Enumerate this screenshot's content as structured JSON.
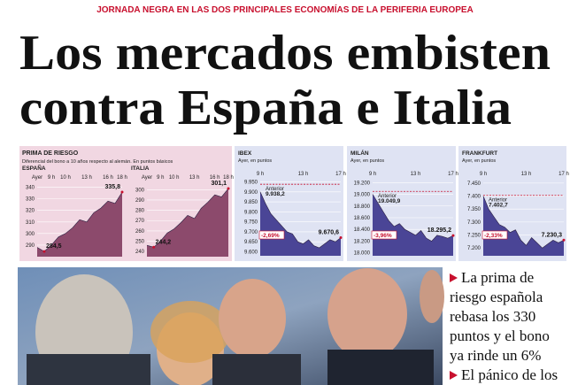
{
  "header": {
    "kicker": "JORNADA NEGRA EN LAS DOS PRINCIPALES ECONOMÍAS DE LA PERIFERIA EUROPEA",
    "headline": [
      "Los mercados embisten",
      "contra España e Italia"
    ]
  },
  "risk_panel": {
    "title": "PRIMA DE RIESGO",
    "subtitle": "Diferencial del bono a 10 años respecto al alemán. En puntos básicos"
  },
  "chart_data": [
    {
      "type": "area",
      "title": "ESPAÑA",
      "color": "#8c4a6c",
      "categories": [
        "Ayer",
        null,
        "9 h",
        null,
        "10 h",
        null,
        null,
        "13 h",
        null,
        null,
        "16 h",
        null,
        "18 h"
      ],
      "values": [
        288,
        284.5,
        290,
        297,
        300,
        305,
        312,
        310,
        318,
        322,
        328,
        326,
        335.8
      ],
      "value_labels": [
        null,
        "284,5",
        null,
        null,
        null,
        null,
        null,
        null,
        null,
        null,
        null,
        null,
        "335,8"
      ],
      "ylim": [
        280,
        345
      ],
      "yticks": [
        290,
        300,
        310,
        320,
        330,
        340
      ]
    },
    {
      "type": "area",
      "title": "ITALIA",
      "color": "#8c4a6c",
      "categories": [
        "Ayer",
        null,
        "9 h",
        null,
        "10 h",
        null,
        null,
        "13 h",
        null,
        null,
        "16 h",
        null,
        "18 h"
      ],
      "values": [
        246,
        244.2,
        250,
        258,
        262,
        268,
        275,
        272,
        282,
        288,
        295,
        293,
        301.1
      ],
      "value_labels": [
        null,
        "244,2",
        null,
        null,
        null,
        null,
        null,
        null,
        null,
        null,
        null,
        null,
        "301,1"
      ],
      "ylim": [
        235,
        308
      ],
      "yticks": [
        240,
        250,
        260,
        270,
        280,
        290,
        300
      ]
    },
    {
      "type": "area",
      "title": "IBEX",
      "subtitle": "Ayer, en puntos",
      "color": "#4a4596",
      "categories": [
        "9 h",
        null,
        null,
        null,
        null,
        null,
        null,
        null,
        "13 h",
        null,
        null,
        null,
        null,
        null,
        null,
        "17 h"
      ],
      "values": [
        9900,
        9840,
        9790,
        9760,
        9730,
        9700,
        9690,
        9650,
        9640,
        9660,
        9630,
        9620,
        9640,
        9660,
        9650,
        9670.6
      ],
      "value_labels": [
        null,
        null,
        null,
        null,
        null,
        null,
        null,
        null,
        null,
        null,
        null,
        null,
        null,
        null,
        null,
        "9.670,6"
      ],
      "reference": {
        "label": "Anterior",
        "value": 9938.2,
        "value_label": "9.938,2"
      },
      "change": "-2,69%",
      "ylim": [
        9580,
        9970
      ],
      "yticks": [
        {
          "value": 9600,
          "label": "9.600"
        },
        {
          "value": 9650,
          "label": "9.650"
        },
        {
          "value": 9700,
          "label": "9.700"
        },
        {
          "value": 9750,
          "label": "9.750"
        },
        {
          "value": 9800,
          "label": "9.800"
        },
        {
          "value": 9850,
          "label": "9.850"
        },
        {
          "value": 9900,
          "label": "9.900"
        },
        {
          "value": 9950,
          "label": "9.950"
        }
      ]
    },
    {
      "type": "area",
      "title": "MILÁN",
      "subtitle": "Ayer, en puntos",
      "color": "#4a4596",
      "categories": [
        "9 h",
        null,
        null,
        null,
        null,
        null,
        null,
        null,
        "13 h",
        null,
        null,
        null,
        null,
        null,
        null,
        "17 h"
      ],
      "values": [
        19000,
        18850,
        18700,
        18550,
        18450,
        18500,
        18400,
        18350,
        18300,
        18380,
        18250,
        18200,
        18300,
        18280,
        18250,
        18295.2
      ],
      "value_labels": [
        null,
        null,
        null,
        null,
        null,
        null,
        null,
        null,
        null,
        null,
        null,
        null,
        null,
        null,
        null,
        "18.295,2"
      ],
      "reference": {
        "label": "Anterior",
        "value": 19049.9,
        "value_label": "19.049,9"
      },
      "change": "-3,96%",
      "ylim": [
        17950,
        19280
      ],
      "yticks": [
        {
          "value": 18000,
          "label": "18.000"
        },
        {
          "value": 18200,
          "label": "18.200"
        },
        {
          "value": 18400,
          "label": "18.400"
        },
        {
          "value": 18600,
          "label": "18.600"
        },
        {
          "value": 18800,
          "label": "18.800"
        },
        {
          "value": 19000,
          "label": "19.000"
        },
        {
          "value": 19200,
          "label": "19.200"
        }
      ]
    },
    {
      "type": "area",
      "title": "FRANKFURT",
      "subtitle": "Ayer, en puntos",
      "color": "#4a4596",
      "categories": [
        "9 h",
        null,
        null,
        null,
        null,
        null,
        null,
        null,
        "13 h",
        null,
        null,
        null,
        null,
        null,
        null,
        "17 h"
      ],
      "values": [
        7400,
        7350,
        7320,
        7290,
        7280,
        7260,
        7270,
        7230,
        7210,
        7240,
        7220,
        7200,
        7215,
        7230,
        7220,
        7230.3
      ],
      "value_labels": [
        null,
        null,
        null,
        null,
        null,
        null,
        null,
        null,
        null,
        null,
        null,
        null,
        null,
        null,
        null,
        "7.230,3"
      ],
      "reference": {
        "label": "Anterior",
        "value": 7402.7,
        "value_label": "7.402,7"
      },
      "change": "-2,33%",
      "ylim": [
        7170,
        7470
      ],
      "yticks": [
        {
          "value": 7200,
          "label": "7.200"
        },
        {
          "value": 7250,
          "label": "7.250"
        },
        {
          "value": 7300,
          "label": "7.300"
        },
        {
          "value": 7350,
          "label": "7.350"
        },
        {
          "value": 7400,
          "label": "7.400"
        },
        {
          "value": 7450,
          "label": "7.450"
        }
      ]
    }
  ],
  "sidebar": {
    "items": [
      [
        "La prima de",
        "riesgo española",
        "rebasa los 330",
        "puntos y el bono",
        "ya rinde un 6%"
      ],
      [
        "El pánico de los"
      ]
    ]
  }
}
